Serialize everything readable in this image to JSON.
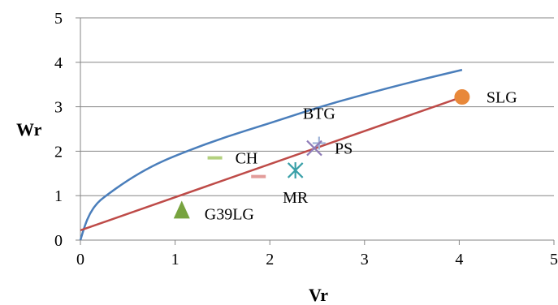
{
  "chart_data": {
    "type": "scatter",
    "title": "",
    "xlabel": "Vr",
    "ylabel": "Wr",
    "xlim": [
      0,
      5
    ],
    "ylim": [
      0,
      5
    ],
    "xticks": [
      "0",
      "1",
      "2",
      "3",
      "4",
      "5"
    ],
    "yticks": [
      "0",
      "1",
      "2",
      "3",
      "4",
      "5"
    ],
    "grid": "horizontal",
    "legend": "none",
    "curve": {
      "color": "#4a7ebb",
      "points": [
        [
          0,
          0
        ],
        [
          0.05,
          0.35
        ],
        [
          0.1,
          0.6
        ],
        [
          0.17,
          0.82
        ],
        [
          0.25,
          0.97
        ],
        [
          0.5,
          1.35
        ],
        [
          0.75,
          1.66
        ],
        [
          1.0,
          1.9
        ],
        [
          1.5,
          2.3
        ],
        [
          2.0,
          2.63
        ],
        [
          2.5,
          2.98
        ],
        [
          3.0,
          3.28
        ],
        [
          3.5,
          3.56
        ],
        [
          4.03,
          3.83
        ]
      ]
    },
    "regression_line": {
      "color": "#be4b48",
      "points": [
        [
          0,
          0.22
        ],
        [
          4.03,
          3.22
        ]
      ]
    },
    "points": [
      {
        "label": "SLG",
        "x": 4.03,
        "y": 3.22,
        "marker": "circle",
        "color": "#e8883a"
      },
      {
        "label": "BTG",
        "x": 2.52,
        "y": 2.18,
        "marker": "plus",
        "color": "#9fb4d8"
      },
      {
        "label": "PS",
        "x": 2.47,
        "y": 2.07,
        "marker": "cross",
        "color": "#8e7cb8"
      },
      {
        "label": "CH",
        "x": 1.42,
        "y": 1.85,
        "marker": "dash",
        "color": "#b3d17f"
      },
      {
        "label": "MR",
        "x": 2.27,
        "y": 1.57,
        "marker": "star",
        "color": "#3aa0a8"
      },
      {
        "label": "",
        "x": 1.88,
        "y": 1.43,
        "marker": "dash",
        "color": "#e39c9a"
      },
      {
        "label": "G39LG",
        "x": 1.07,
        "y": 0.65,
        "marker": "triangle",
        "color": "#77a33f"
      }
    ]
  }
}
